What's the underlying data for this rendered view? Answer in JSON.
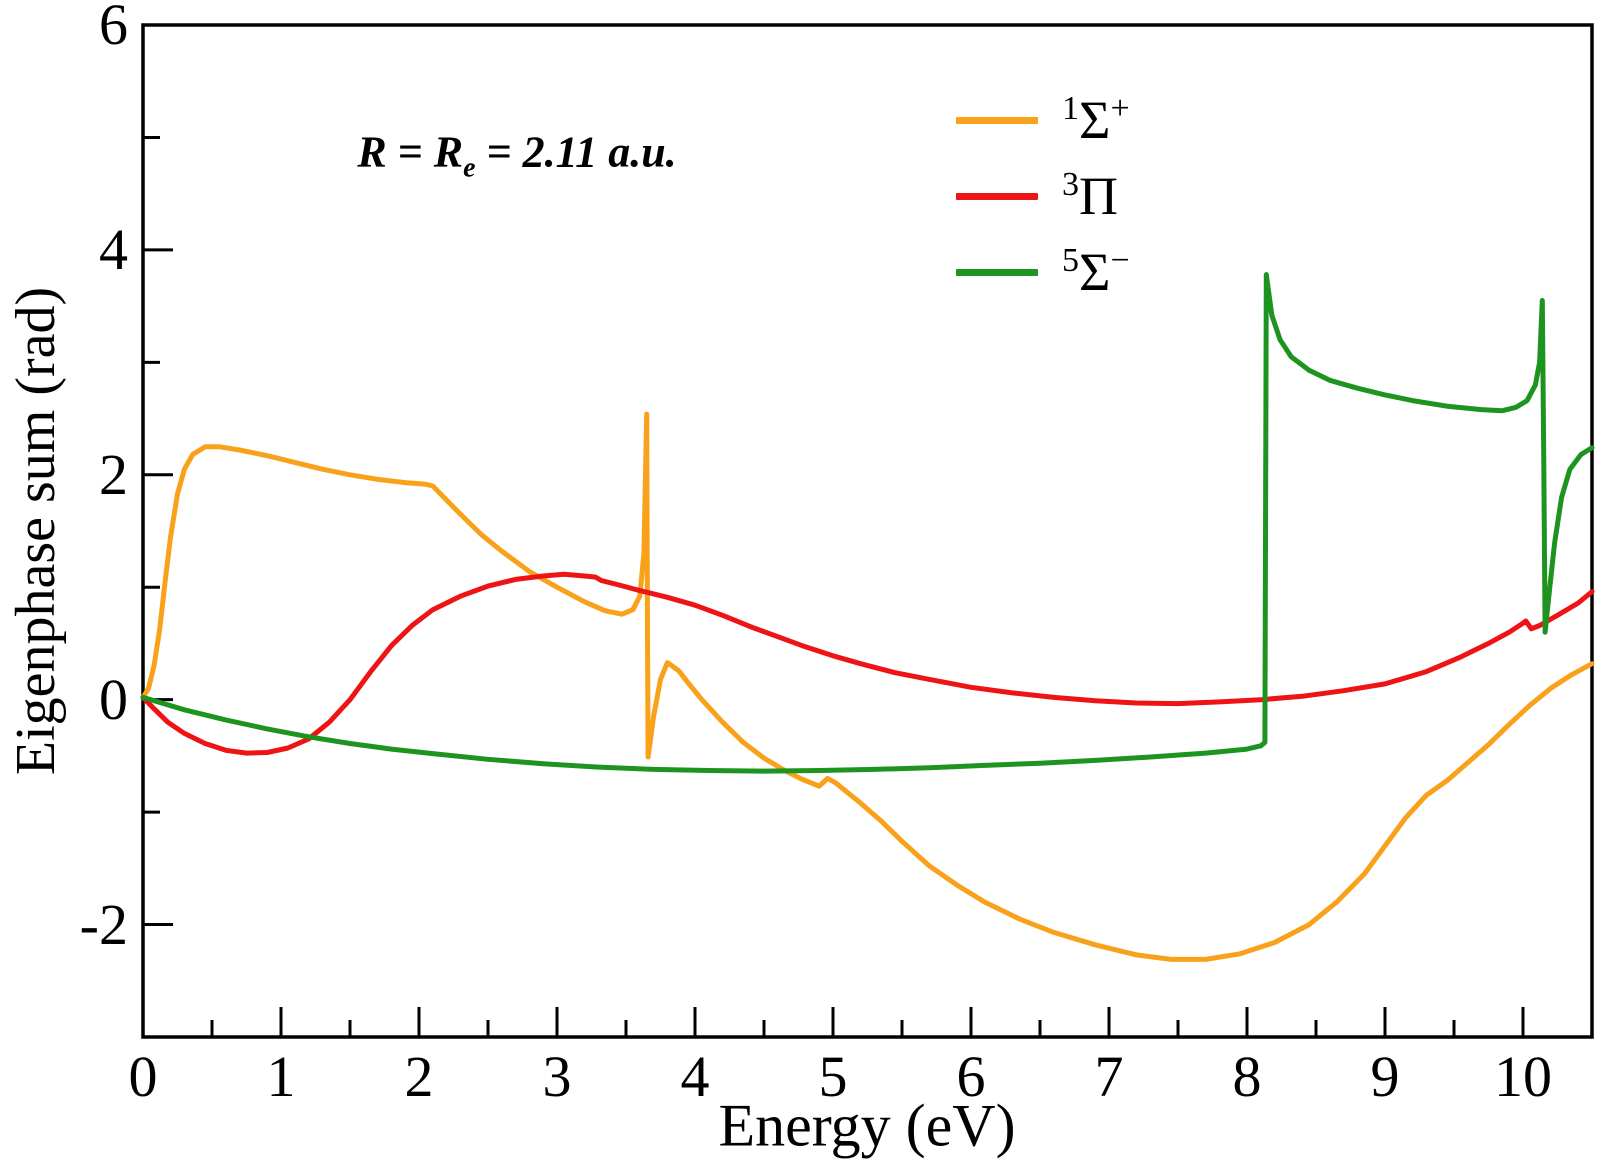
{
  "chart_data": {
    "type": "line",
    "xlabel": "Energy (eV)",
    "ylabel": "Eigenphase sum (rad)",
    "xlim": [
      0,
      10.5
    ],
    "ylim": [
      -3,
      6
    ],
    "grid": false,
    "legend_position": "upper-right-inside",
    "annotation": {
      "pre": "R = R",
      "sub": "e",
      "post": " = 2.11 a.u."
    },
    "x_major_ticks": [
      0,
      1,
      2,
      3,
      4,
      5,
      6,
      7,
      8,
      9,
      10
    ],
    "x_minor_ticks": [
      0.5,
      1.5,
      2.5,
      3.5,
      4.5,
      5.5,
      6.5,
      7.5,
      8.5,
      9.5
    ],
    "y_major_ticks": [
      -2,
      0,
      2,
      4,
      6
    ],
    "y_minor_ticks": [
      -1,
      1,
      3,
      5
    ],
    "axis_color": "#000000",
    "series": [
      {
        "name": "1Sigma+",
        "label": {
          "sup1": "1",
          "base": "Σ",
          "sup2": "+"
        },
        "color": "#F9A11B",
        "points": [
          [
            0,
            0.02
          ],
          [
            0.04,
            0.1
          ],
          [
            0.08,
            0.3
          ],
          [
            0.12,
            0.62
          ],
          [
            0.16,
            1.05
          ],
          [
            0.2,
            1.45
          ],
          [
            0.25,
            1.83
          ],
          [
            0.3,
            2.05
          ],
          [
            0.36,
            2.18
          ],
          [
            0.45,
            2.25
          ],
          [
            0.55,
            2.25
          ],
          [
            0.7,
            2.22
          ],
          [
            0.9,
            2.17
          ],
          [
            1.1,
            2.11
          ],
          [
            1.3,
            2.05
          ],
          [
            1.5,
            2.0
          ],
          [
            1.7,
            1.96
          ],
          [
            1.9,
            1.93
          ],
          [
            2.05,
            1.915
          ],
          [
            2.1,
            1.9
          ],
          [
            2.18,
            1.8
          ],
          [
            2.3,
            1.65
          ],
          [
            2.45,
            1.47
          ],
          [
            2.6,
            1.32
          ],
          [
            2.8,
            1.14
          ],
          [
            3.0,
            1.0
          ],
          [
            3.2,
            0.87
          ],
          [
            3.35,
            0.79
          ],
          [
            3.47,
            0.76
          ],
          [
            3.55,
            0.8
          ],
          [
            3.6,
            0.92
          ],
          [
            3.63,
            1.3
          ],
          [
            3.65,
            2.54
          ],
          [
            3.655,
            0.8
          ],
          [
            3.66,
            -0.51
          ],
          [
            3.7,
            -0.15
          ],
          [
            3.75,
            0.18
          ],
          [
            3.8,
            0.33
          ],
          [
            3.88,
            0.26
          ],
          [
            3.95,
            0.15
          ],
          [
            4.05,
            0.0
          ],
          [
            4.2,
            -0.2
          ],
          [
            4.35,
            -0.38
          ],
          [
            4.5,
            -0.52
          ],
          [
            4.65,
            -0.63
          ],
          [
            4.78,
            -0.71
          ],
          [
            4.88,
            -0.76
          ],
          [
            4.9,
            -0.77
          ],
          [
            4.96,
            -0.7
          ],
          [
            5.02,
            -0.74
          ],
          [
            5.1,
            -0.82
          ],
          [
            5.2,
            -0.92
          ],
          [
            5.35,
            -1.08
          ],
          [
            5.5,
            -1.26
          ],
          [
            5.7,
            -1.48
          ],
          [
            5.9,
            -1.65
          ],
          [
            6.1,
            -1.8
          ],
          [
            6.35,
            -1.95
          ],
          [
            6.6,
            -2.07
          ],
          [
            6.9,
            -2.18
          ],
          [
            7.2,
            -2.27
          ],
          [
            7.45,
            -2.31
          ],
          [
            7.7,
            -2.31
          ],
          [
            7.95,
            -2.26
          ],
          [
            8.2,
            -2.16
          ],
          [
            8.45,
            -2.0
          ],
          [
            8.65,
            -1.8
          ],
          [
            8.85,
            -1.55
          ],
          [
            9.0,
            -1.3
          ],
          [
            9.15,
            -1.05
          ],
          [
            9.3,
            -0.85
          ],
          [
            9.45,
            -0.72
          ],
          [
            9.6,
            -0.56
          ],
          [
            9.75,
            -0.4
          ],
          [
            9.9,
            -0.22
          ],
          [
            10.05,
            -0.05
          ],
          [
            10.2,
            0.1
          ],
          [
            10.35,
            0.22
          ],
          [
            10.5,
            0.32
          ]
        ]
      },
      {
        "name": "3Pi",
        "label": {
          "sup1": "3",
          "base": "Π",
          "sup2": ""
        },
        "color": "#EE1416",
        "points": [
          [
            0,
            0.02
          ],
          [
            0.08,
            -0.08
          ],
          [
            0.18,
            -0.2
          ],
          [
            0.3,
            -0.3
          ],
          [
            0.45,
            -0.39
          ],
          [
            0.6,
            -0.45
          ],
          [
            0.75,
            -0.475
          ],
          [
            0.9,
            -0.47
          ],
          [
            1.05,
            -0.43
          ],
          [
            1.2,
            -0.35
          ],
          [
            1.35,
            -0.2
          ],
          [
            1.5,
            0.0
          ],
          [
            1.65,
            0.25
          ],
          [
            1.8,
            0.48
          ],
          [
            1.95,
            0.66
          ],
          [
            2.1,
            0.8
          ],
          [
            2.3,
            0.92
          ],
          [
            2.5,
            1.01
          ],
          [
            2.7,
            1.07
          ],
          [
            2.9,
            1.1
          ],
          [
            3.05,
            1.115
          ],
          [
            3.2,
            1.1
          ],
          [
            3.28,
            1.09
          ],
          [
            3.32,
            1.06
          ],
          [
            3.45,
            1.02
          ],
          [
            3.6,
            0.97
          ],
          [
            3.8,
            0.91
          ],
          [
            4.0,
            0.84
          ],
          [
            4.2,
            0.75
          ],
          [
            4.4,
            0.65
          ],
          [
            4.6,
            0.56
          ],
          [
            4.8,
            0.47
          ],
          [
            5.0,
            0.39
          ],
          [
            5.2,
            0.32
          ],
          [
            5.45,
            0.24
          ],
          [
            5.7,
            0.18
          ],
          [
            6.0,
            0.11
          ],
          [
            6.3,
            0.06
          ],
          [
            6.6,
            0.02
          ],
          [
            6.9,
            -0.01
          ],
          [
            7.2,
            -0.03
          ],
          [
            7.5,
            -0.035
          ],
          [
            7.8,
            -0.02
          ],
          [
            8.1,
            0.0
          ],
          [
            8.4,
            0.03
          ],
          [
            8.7,
            0.08
          ],
          [
            9.0,
            0.14
          ],
          [
            9.3,
            0.25
          ],
          [
            9.55,
            0.38
          ],
          [
            9.75,
            0.5
          ],
          [
            9.9,
            0.6
          ],
          [
            10.0,
            0.68
          ],
          [
            10.02,
            0.7
          ],
          [
            10.06,
            0.63
          ],
          [
            10.12,
            0.66
          ],
          [
            10.25,
            0.75
          ],
          [
            10.4,
            0.86
          ],
          [
            10.5,
            0.96
          ]
        ]
      },
      {
        "name": "5Sigma-",
        "label": {
          "sup1": "5",
          "base": "Σ",
          "sup2": "−"
        },
        "color": "#1E9420",
        "points": [
          [
            0,
            0.02
          ],
          [
            0.3,
            -0.09
          ],
          [
            0.6,
            -0.18
          ],
          [
            0.9,
            -0.26
          ],
          [
            1.2,
            -0.33
          ],
          [
            1.5,
            -0.39
          ],
          [
            1.8,
            -0.44
          ],
          [
            2.1,
            -0.48
          ],
          [
            2.5,
            -0.53
          ],
          [
            2.9,
            -0.57
          ],
          [
            3.3,
            -0.6
          ],
          [
            3.7,
            -0.62
          ],
          [
            4.1,
            -0.63
          ],
          [
            4.5,
            -0.635
          ],
          [
            4.9,
            -0.63
          ],
          [
            5.3,
            -0.62
          ],
          [
            5.7,
            -0.605
          ],
          [
            6.1,
            -0.585
          ],
          [
            6.5,
            -0.565
          ],
          [
            6.9,
            -0.54
          ],
          [
            7.3,
            -0.51
          ],
          [
            7.7,
            -0.475
          ],
          [
            8.0,
            -0.44
          ],
          [
            8.1,
            -0.41
          ],
          [
            8.13,
            -0.38
          ],
          [
            8.14,
            3.78
          ],
          [
            8.18,
            3.42
          ],
          [
            8.24,
            3.2
          ],
          [
            8.32,
            3.05
          ],
          [
            8.45,
            2.93
          ],
          [
            8.6,
            2.84
          ],
          [
            8.8,
            2.77
          ],
          [
            9.0,
            2.71
          ],
          [
            9.2,
            2.66
          ],
          [
            9.45,
            2.61
          ],
          [
            9.7,
            2.58
          ],
          [
            9.85,
            2.57
          ],
          [
            9.95,
            2.6
          ],
          [
            10.03,
            2.66
          ],
          [
            10.09,
            2.8
          ],
          [
            10.12,
            3.0
          ],
          [
            10.14,
            3.55
          ],
          [
            10.15,
            2.2
          ],
          [
            10.16,
            0.6
          ],
          [
            10.19,
            0.95
          ],
          [
            10.23,
            1.4
          ],
          [
            10.28,
            1.8
          ],
          [
            10.34,
            2.05
          ],
          [
            10.42,
            2.18
          ],
          [
            10.5,
            2.24
          ]
        ]
      }
    ]
  }
}
